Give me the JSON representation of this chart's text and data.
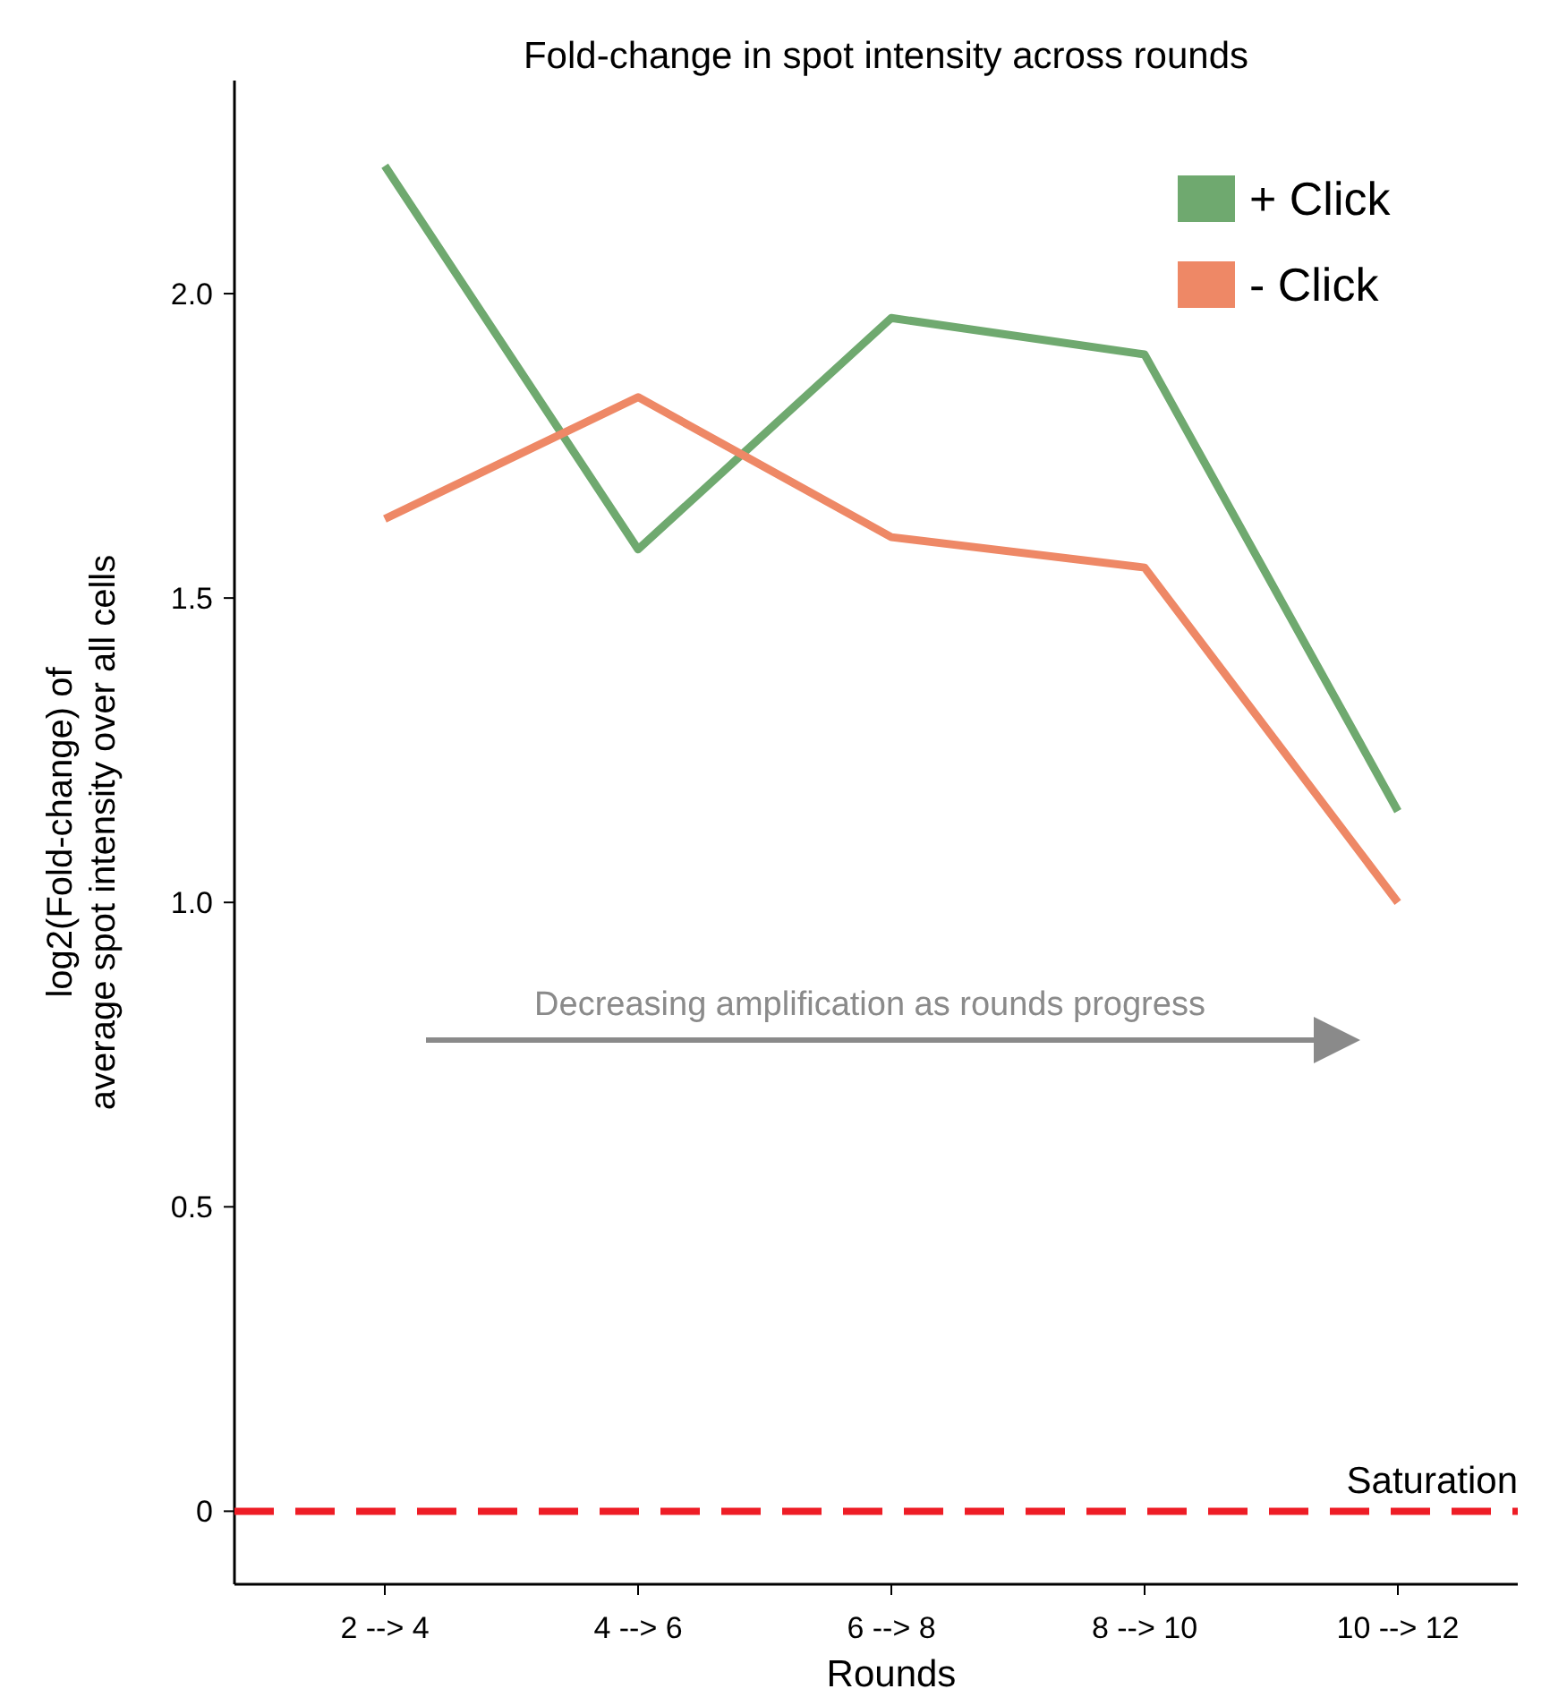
{
  "chart_data": {
    "type": "line",
    "title": "Fold-change in spot intensity across rounds",
    "xlabel": "Rounds",
    "ylabel": "log2(Fold-change) of\naverage spot intensity over all cells",
    "categories": [
      "2 --> 4",
      "4 --> 6",
      "6 --> 8",
      "8 --> 10",
      "10 --> 12"
    ],
    "series": [
      {
        "name": "+ Click",
        "color": "#6fa96f",
        "values": [
          2.21,
          1.58,
          1.96,
          1.9,
          1.15
        ]
      },
      {
        "name": "- Click",
        "color": "#ee8866",
        "values": [
          1.63,
          1.83,
          1.6,
          1.55,
          1.0
        ]
      }
    ],
    "ylim": [
      -0.12,
      2.35
    ],
    "yticks": [
      {
        "value": 0,
        "label": "0"
      },
      0.5,
      {
        "value": 1,
        "label": "1.0"
      },
      1.5,
      {
        "value": 2,
        "label": "2.0"
      }
    ],
    "ref_lines": [
      {
        "axis": "y",
        "value": 0,
        "label": "Saturation",
        "color": "#ee1c25",
        "line_style": "dashed"
      }
    ],
    "annotations": [
      "Decreasing amplification as rounds progress"
    ],
    "legend": "top right",
    "grid": false,
    "line_style": "solid"
  }
}
